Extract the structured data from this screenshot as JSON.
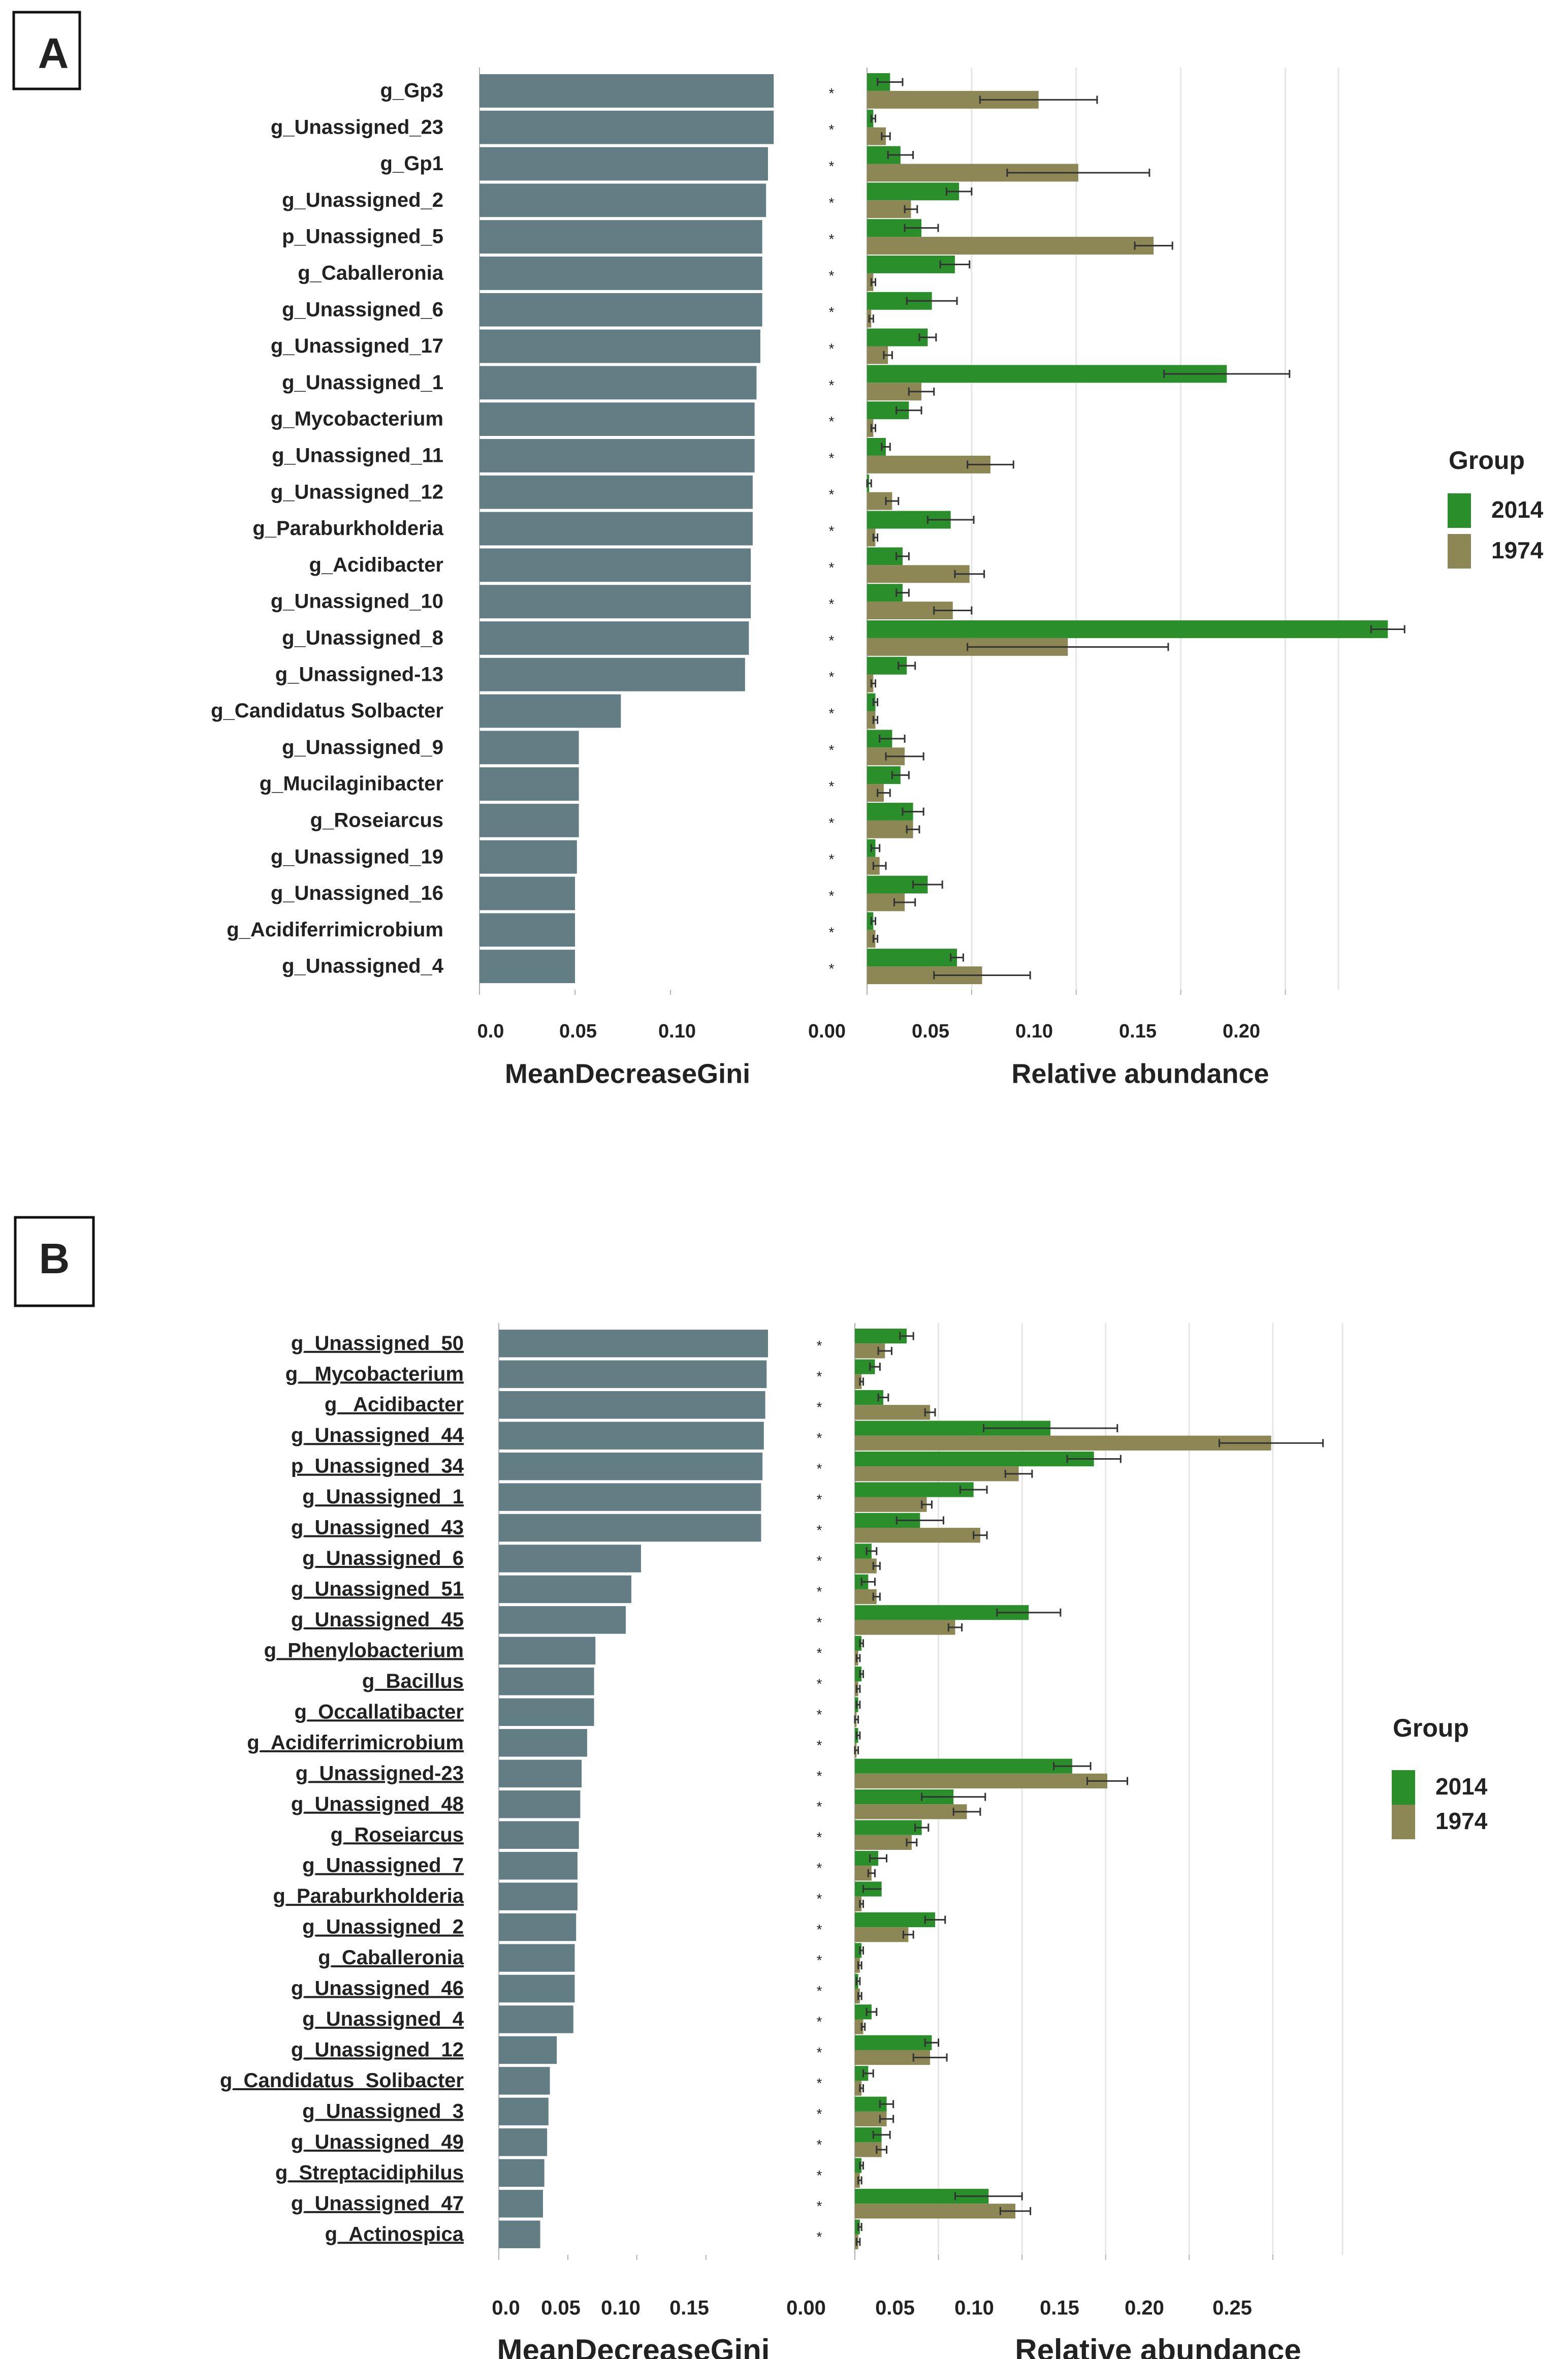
{
  "colors": {
    "gini_bar": "#637d85",
    "group_2014": "#2a8f2a",
    "group_1974": "#8c8754",
    "error_bar": "#333333",
    "grid": "#e6e6e6",
    "axis": "#b0b0b0",
    "text": "#222222",
    "panel_border": "#111111"
  },
  "chart_data": [
    {
      "panel": "A",
      "type": "bar",
      "layout": "horizontal-paired",
      "gini": {
        "xlabel": "MeanDecreaseGini",
        "xlim": [
          0,
          0.155
        ],
        "ticks": [
          0.0,
          0.05,
          0.1
        ],
        "tick_labels": [
          "0.0",
          "0.05",
          "0.10"
        ]
      },
      "abundance": {
        "xlabel": "Relative abundance",
        "xlim": [
          0,
          0.255
        ],
        "ticks": [
          0.0,
          0.05,
          0.1,
          0.15,
          0.2
        ],
        "tick_labels": [
          "0.00",
          "0.05",
          "0.10",
          "0.15",
          "0.20"
        ]
      },
      "legend": {
        "title": "Group",
        "position": "right",
        "entries": [
          "2014",
          "1974"
        ]
      },
      "categories": [
        "g_Gp3",
        "g_Unassigned_23",
        "g_Gp1",
        "g_Unassigned_2",
        "p_Unassigned_5",
        "g_Caballeronia",
        "g_Unassigned_6",
        "g_Unassigned_17",
        "g_Unassigned_1",
        "g_Mycobacterium",
        "g_Unassigned_11",
        "g_Unassigned_12",
        "g_Paraburkholderia",
        "g_Acidibacter",
        "g_Unassigned_10",
        "g_Unassigned_8",
        "g_Unassigned-13",
        "g_Candidatus Solbacter",
        "g_Unassigned_9",
        "g_Mucilaginibacter",
        "g_Roseiarcus",
        "g_Unassigned_19",
        "g_Unassigned_16",
        "g_Acidiferrimicrobium",
        "g_Unassigned_4"
      ],
      "underlined": false,
      "gini_values": [
        0.154,
        0.154,
        0.151,
        0.15,
        0.148,
        0.148,
        0.148,
        0.147,
        0.145,
        0.144,
        0.144,
        0.143,
        0.143,
        0.142,
        0.142,
        0.141,
        0.139,
        0.074,
        0.052,
        0.052,
        0.052,
        0.051,
        0.05,
        0.05,
        0.05
      ],
      "significance_marks": [
        "*",
        "*",
        "*",
        "*",
        "*",
        "*",
        "*",
        "*",
        "*",
        "*",
        "*",
        "*",
        "*",
        "*",
        "*",
        "*",
        "*",
        "*",
        "*",
        "*",
        "*",
        "*",
        "*",
        "*",
        "*"
      ],
      "series": [
        {
          "name": "2014",
          "values": [
            0.011,
            0.003,
            0.016,
            0.044,
            0.026,
            0.042,
            0.031,
            0.029,
            0.172,
            0.02,
            0.009,
            0.001,
            0.04,
            0.017,
            0.017,
            0.249,
            0.019,
            0.004,
            0.012,
            0.016,
            0.022,
            0.004,
            0.029,
            0.003,
            0.043
          ],
          "errors": [
            0.006,
            0.001,
            0.006,
            0.006,
            0.008,
            0.007,
            0.012,
            0.004,
            0.03,
            0.006,
            0.002,
            0.001,
            0.011,
            0.003,
            0.003,
            0.008,
            0.004,
            0.001,
            0.006,
            0.004,
            0.005,
            0.002,
            0.007,
            0.001,
            0.003
          ]
        },
        {
          "name": "1974",
          "values": [
            0.082,
            0.009,
            0.101,
            0.021,
            0.137,
            0.003,
            0.002,
            0.01,
            0.026,
            0.003,
            0.059,
            0.012,
            0.004,
            0.049,
            0.041,
            0.096,
            0.003,
            0.004,
            0.018,
            0.008,
            0.022,
            0.006,
            0.018,
            0.004,
            0.055
          ],
          "errors": [
            0.028,
            0.002,
            0.034,
            0.003,
            0.009,
            0.001,
            0.001,
            0.002,
            0.006,
            0.001,
            0.011,
            0.003,
            0.001,
            0.007,
            0.009,
            0.048,
            0.001,
            0.001,
            0.009,
            0.003,
            0.003,
            0.003,
            0.005,
            0.001,
            0.023
          ]
        }
      ]
    },
    {
      "panel": "B",
      "type": "bar",
      "layout": "horizontal-paired",
      "gini": {
        "xlabel": "MeanDecreaseGini",
        "xlim": [
          0,
          0.195
        ],
        "ticks": [
          0.0,
          0.05,
          0.1,
          0.15
        ],
        "tick_labels": [
          "0.0",
          "0.05",
          "0.10",
          "0.15"
        ]
      },
      "abundance": {
        "xlabel": "Relative abundance",
        "xlim": [
          0,
          0.295
        ],
        "ticks": [
          0.0,
          0.05,
          0.1,
          0.15,
          0.2,
          0.25
        ],
        "tick_labels": [
          "0.00",
          "0.05",
          "0.10",
          "0.15",
          "0.20",
          "0.25"
        ]
      },
      "legend": {
        "title": "Group",
        "position": "right",
        "entries": [
          "2014",
          "1974"
        ]
      },
      "categories": [
        "g_Unassigned_50",
        "g_ Mycobacterium",
        "g_ Acidibacter",
        "g_Unassigned_44",
        "p_Unassigned_34",
        "g_Unassigned_1",
        "g_Unassigned_43",
        "g_Unassigned_6",
        "g_Unassigned_51",
        "g_Unassigned_45",
        "g_Phenylobacterium",
        "g_Bacillus",
        "g_Occallatibacter",
        "g_Acidiferrimicrobium",
        "g_Unassigned-23",
        "g_Unassigned_48",
        "g_Roseiarcus",
        "g_Unassigned_7",
        "g_Paraburkholderia",
        "g_Unassigned_2",
        "g_Caballeronia",
        "g_Unassigned_46",
        "g_Unassigned_4",
        "g_Unassigned_12",
        "g_Candidatus_Solibacter",
        "g_Unassigned_3",
        "g_Unassigned_49",
        "g_Streptacidiphilus",
        "g_Unassigned_47",
        "g_Actinospica"
      ],
      "underlined": true,
      "gini_values": [
        0.195,
        0.194,
        0.193,
        0.192,
        0.191,
        0.19,
        0.19,
        0.103,
        0.096,
        0.092,
        0.07,
        0.069,
        0.069,
        0.064,
        0.06,
        0.059,
        0.058,
        0.057,
        0.057,
        0.056,
        0.055,
        0.055,
        0.054,
        0.042,
        0.037,
        0.036,
        0.035,
        0.033,
        0.032,
        0.03
      ],
      "significance_marks": [
        "*",
        "*",
        "*",
        "*",
        "*",
        "*",
        "*",
        "*",
        "*",
        "*",
        "*",
        "*",
        "*",
        "*",
        "*",
        "*",
        "*",
        "*",
        "*",
        "*",
        "*",
        "*",
        "*",
        "*",
        "*",
        "*",
        "*",
        "*",
        "*",
        "*"
      ],
      "series": [
        {
          "name": "2014",
          "values": [
            0.031,
            0.012,
            0.017,
            0.117,
            0.143,
            0.071,
            0.039,
            0.01,
            0.008,
            0.104,
            0.004,
            0.004,
            0.002,
            0.002,
            0.13,
            0.059,
            0.04,
            0.014,
            0.016,
            0.048,
            0.004,
            0.002,
            0.01,
            0.046,
            0.008,
            0.019,
            0.016,
            0.004,
            0.08,
            0.003
          ],
          "errors": [
            0.004,
            0.003,
            0.003,
            0.04,
            0.016,
            0.008,
            0.014,
            0.003,
            0.004,
            0.019,
            0.001,
            0.001,
            0.001,
            0.001,
            0.011,
            0.019,
            0.004,
            0.005,
            0.011,
            0.006,
            0.001,
            0.001,
            0.003,
            0.004,
            0.003,
            0.004,
            0.005,
            0.001,
            0.02,
            0.001
          ],
          "error_lower_only": [
            false,
            false,
            false,
            false,
            false,
            false,
            false,
            false,
            false,
            false,
            false,
            false,
            false,
            false,
            false,
            false,
            false,
            false,
            true,
            false,
            false,
            false,
            false,
            false,
            false,
            false,
            false,
            false,
            false,
            false
          ]
        },
        {
          "name": "1974",
          "values": [
            0.018,
            0.004,
            0.045,
            0.249,
            0.098,
            0.043,
            0.075,
            0.013,
            0.013,
            0.06,
            0.002,
            0.002,
            0.001,
            0.001,
            0.151,
            0.067,
            0.034,
            0.01,
            0.004,
            0.032,
            0.003,
            0.003,
            0.005,
            0.045,
            0.004,
            0.019,
            0.016,
            0.003,
            0.096,
            0.002
          ],
          "errors": [
            0.004,
            0.001,
            0.003,
            0.031,
            0.008,
            0.003,
            0.004,
            0.002,
            0.002,
            0.004,
            0.001,
            0.001,
            0.001,
            0.001,
            0.012,
            0.008,
            0.003,
            0.002,
            0.001,
            0.003,
            0.001,
            0.001,
            0.001,
            0.01,
            0.001,
            0.004,
            0.003,
            0.001,
            0.009,
            0.001
          ]
        }
      ]
    }
  ]
}
